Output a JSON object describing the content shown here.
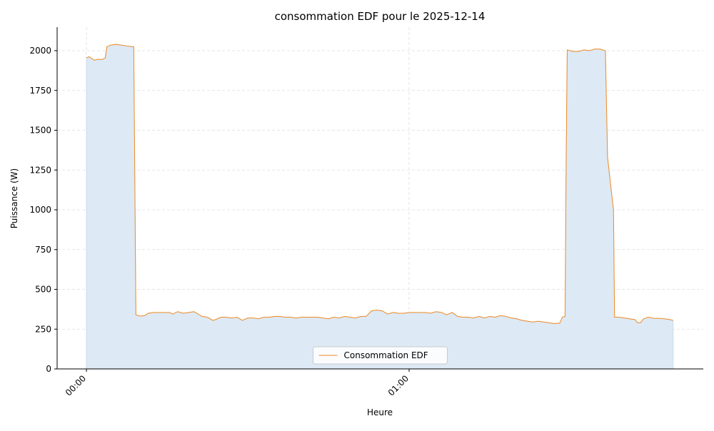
{
  "chart_data": {
    "type": "area-line",
    "title": "consommation EDF pour le 2025-12-14",
    "xlabel": "Heure",
    "ylabel": "Puissance (W)",
    "x": [
      0,
      0.5,
      1,
      1.5,
      2,
      3,
      3.5,
      3.8,
      4.5,
      5.5,
      6.5,
      7.5,
      8.5,
      8.8,
      9.2,
      10,
      10.8,
      11.5,
      12.5,
      14,
      15.5,
      16,
      17,
      18,
      19,
      20,
      20.5,
      21.5,
      22.5,
      23.5,
      24,
      25,
      26,
      27,
      28,
      29,
      30,
      31,
      32,
      33,
      34,
      35,
      36,
      37,
      38,
      39,
      40,
      41,
      42,
      43,
      44,
      45,
      46,
      47,
      48,
      49,
      50,
      51,
      52,
      53,
      54,
      55,
      56,
      57,
      58,
      59,
      60,
      61,
      62,
      63,
      64,
      65,
      66,
      67,
      68,
      69,
      70,
      71,
      72,
      73,
      74,
      75,
      76,
      77,
      78,
      79,
      80,
      81,
      82,
      83,
      84,
      85,
      86,
      87,
      88,
      88.5,
      89,
      89.2,
      89.4,
      90.5,
      91.5,
      92.5,
      93.5,
      94.5,
      95.5,
      96.5,
      96.9,
      98,
      98.2,
      99,
      100,
      101,
      102,
      102.5,
      103,
      103.6,
      104.5,
      105.5,
      106.5,
      107.5,
      108.5,
      109.1
    ],
    "series": [
      {
        "name": "Consommation EDF",
        "color": "#f08a24",
        "fill_color": "#dde9f4",
        "values": [
          1955,
          1962,
          1950,
          1940,
          1945,
          1945,
          1955,
          2025,
          2035,
          2040,
          2035,
          2030,
          2025,
          2025,
          340,
          332,
          335,
          350,
          355,
          355,
          355,
          345,
          360,
          350,
          355,
          360,
          350,
          330,
          325,
          305,
          310,
          325,
          325,
          320,
          325,
          305,
          320,
          320,
          315,
          325,
          325,
          330,
          330,
          325,
          325,
          320,
          325,
          325,
          325,
          325,
          320,
          315,
          325,
          320,
          330,
          325,
          320,
          330,
          330,
          365,
          370,
          365,
          345,
          355,
          350,
          350,
          355,
          355,
          355,
          355,
          350,
          360,
          355,
          340,
          355,
          330,
          325,
          325,
          320,
          330,
          320,
          330,
          325,
          335,
          330,
          320,
          315,
          305,
          300,
          295,
          300,
          295,
          290,
          285,
          288,
          325,
          330,
          1300,
          2005,
          1995,
          1995,
          2005,
          2000,
          2010,
          2010,
          2000,
          1330,
          1000,
          325,
          325,
          320,
          315,
          310,
          290,
          290,
          315,
          325,
          318,
          318,
          315,
          310,
          305
        ]
      }
    ],
    "xlim": [
      -5.45,
      114.7
    ],
    "xticks": [
      {
        "value": 0,
        "label": "00:00"
      },
      {
        "value": 60,
        "label": "01:00"
      }
    ],
    "ylim": [
      0,
      2148
    ],
    "yticks": [
      0,
      250,
      500,
      750,
      1000,
      1250,
      1500,
      1750,
      2000
    ],
    "grid": true,
    "legend": "lower center"
  }
}
